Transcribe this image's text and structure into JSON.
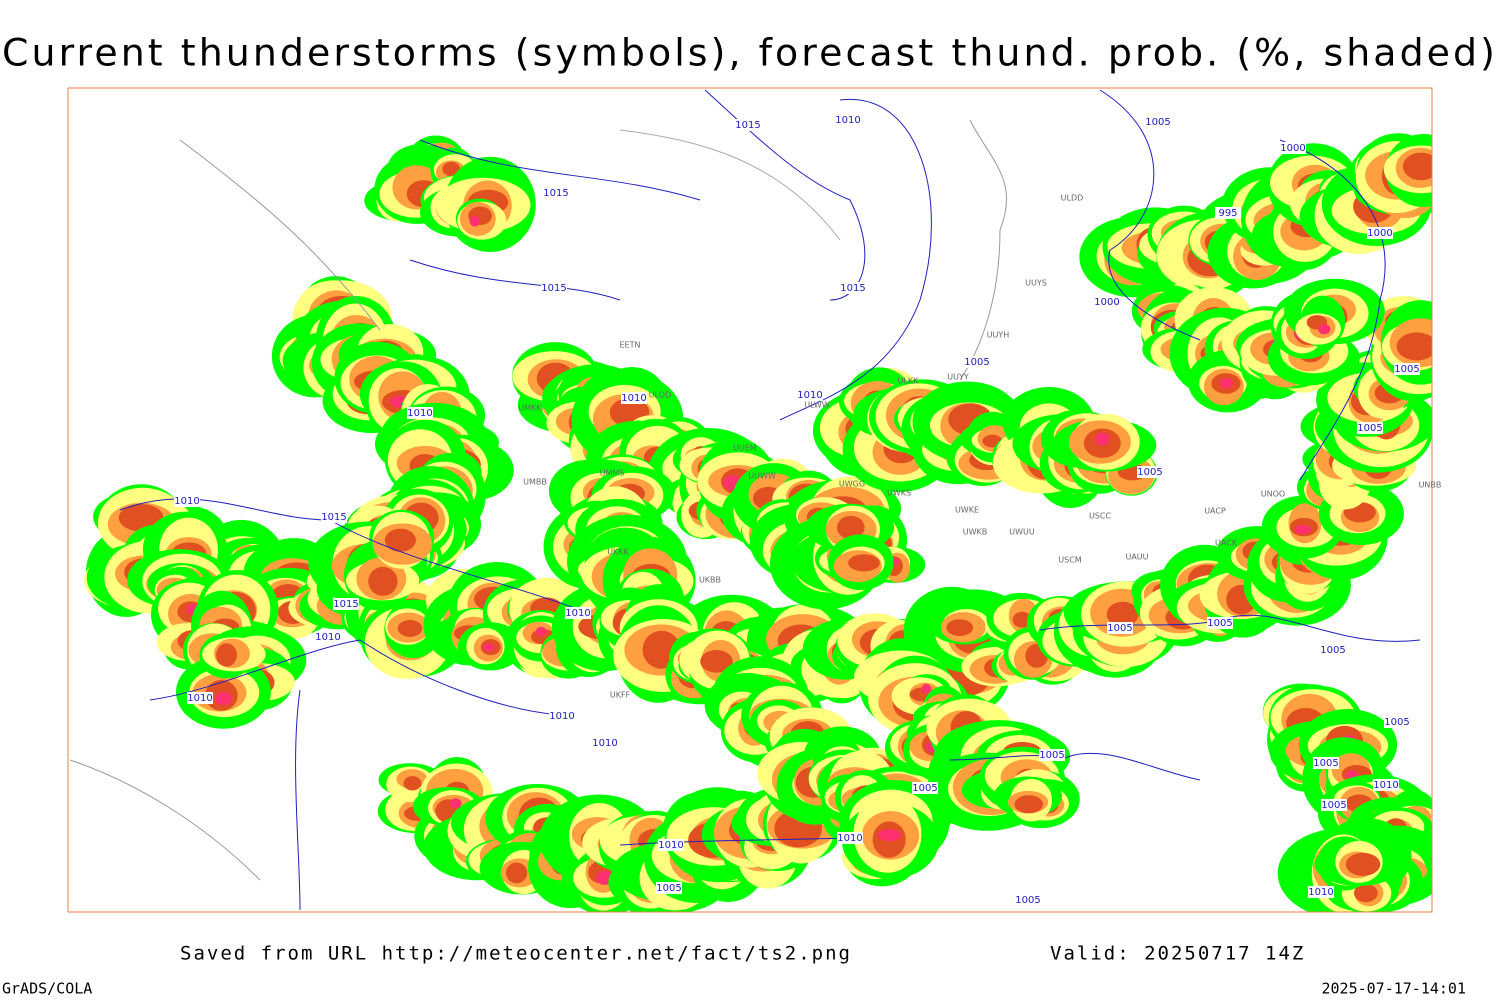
{
  "title": "Current thunderstorms (symbols), forecast thund. prob. (%, shaded)",
  "footer": {
    "saved": "Saved from URL http://meteocenter.net/fact/ts2.png",
    "valid": "Valid: 20250717 14Z",
    "software": "GrADS/COLA",
    "timestamp": "2025-07-17-14:01"
  },
  "isobar_labels": [
    "1015",
    "1010",
    "1005",
    "1015",
    "1015",
    "1015",
    "1000",
    "995",
    "1000",
    "1000",
    "1005",
    "1010",
    "1010",
    "1010",
    "1005",
    "1005",
    "1005",
    "1010",
    "1015",
    "1015",
    "1010",
    "1010",
    "1005",
    "1005",
    "1005",
    "1010",
    "1010",
    "1010",
    "1005",
    "1005",
    "1005",
    "1005",
    "1010",
    "1005",
    "1010",
    "1010",
    "1005",
    "1010",
    "1005"
  ],
  "stations": [
    "ULDD",
    "UUYS",
    "UUYH",
    "ULKK",
    "UUYY",
    "ULWW",
    "UUEM",
    "UUWW",
    "UWGG",
    "UWKS",
    "UWKE",
    "UWKB",
    "UWUU",
    "USCC",
    "USCM",
    "UAUU",
    "UACP",
    "UACK",
    "UNOO",
    "UNBB",
    "UMMS",
    "UMBB",
    "UMKK",
    "EETN",
    "ULOD",
    "UKKK",
    "UKBB",
    "UKFF"
  ]
}
